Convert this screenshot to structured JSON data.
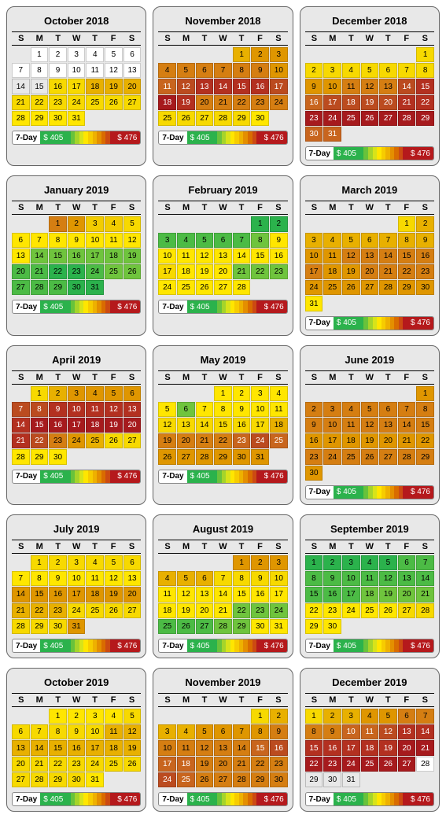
{
  "dowLabels": [
    "S",
    "M",
    "T",
    "W",
    "T",
    "F",
    "S"
  ],
  "legend": {
    "label": "7-Day",
    "low": "$ 405",
    "high": "$ 476",
    "lowColor": "#2bb24c",
    "highColor": "#b5191c",
    "scaleColors": [
      "#2bb24c",
      "#68c23b",
      "#a5d42a",
      "#d7e31a",
      "#ffe600",
      "#f7cc00",
      "#eeb100",
      "#e48f00",
      "#d96c00",
      "#cc4a12",
      "#b5191c"
    ]
  },
  "colors": {
    "W": "#ffffff",
    "G": "#e8e8e8",
    "g1": "#2bb24c",
    "g2": "#4cbb45",
    "g3": "#6fc43d",
    "y1": "#ffe600",
    "y2": "#f7d900",
    "y3": "#f2cc00",
    "o1": "#e8b000",
    "o2": "#df9600",
    "o3": "#d57e12",
    "o4": "#c8651e",
    "r1": "#bb4b1f",
    "r2": "#b33020",
    "r3": "#a61a1d"
  },
  "lightText": [
    "o4",
    "r1",
    "r2",
    "r3"
  ],
  "months": [
    {
      "title": "October 2018",
      "startDay": 1,
      "days": [
        "W",
        "W",
        "W",
        "W",
        "W",
        "W",
        "W",
        "W",
        "W",
        "W",
        "W",
        "W",
        "W",
        "G",
        "G",
        "y2",
        "y2",
        "o1",
        "o1",
        "o1",
        "y2",
        "y2",
        "y2",
        "y2",
        "y2",
        "y2",
        "y2",
        "y1",
        "y1",
        "y1",
        "y1"
      ]
    },
    {
      "title": "November 2018",
      "startDay": 4,
      "days": [
        "o1",
        "o2",
        "o2",
        "o3",
        "o3",
        "o3",
        "o3",
        "o3",
        "o3",
        "o2",
        "o4",
        "r1",
        "r2",
        "r2",
        "r2",
        "r2",
        "r1",
        "r3",
        "r2",
        "o3",
        "o3",
        "o3",
        "o3",
        "o3",
        "y2",
        "y2",
        "y2",
        "y2",
        "y2",
        "y1"
      ]
    },
    {
      "title": "December 2018",
      "startDay": 6,
      "days": [
        "y2",
        "y2",
        "y2",
        "y2",
        "y2",
        "y2",
        "y2",
        "y2",
        "o2",
        "o2",
        "o3",
        "o3",
        "o3",
        "r1",
        "r2",
        "o4",
        "r1",
        "r1",
        "r1",
        "r1",
        "r2",
        "r2",
        "r3",
        "r3",
        "r3",
        "r3",
        "r3",
        "r3",
        "r3",
        "o4",
        "o4"
      ]
    },
    {
      "title": "January 2019",
      "startDay": 2,
      "days": [
        "o3",
        "o2",
        "y3",
        "y3",
        "y2",
        "y1",
        "y1",
        "y1",
        "y1",
        "y1",
        "y1",
        "y1",
        "y1",
        "g3",
        "g3",
        "g3",
        "g3",
        "g3",
        "g3",
        "g2",
        "g2",
        "g1",
        "g1",
        "g2",
        "g3",
        "g3",
        "g2",
        "g2",
        "g2",
        "g1",
        "g1"
      ]
    },
    {
      "title": "February 2019",
      "startDay": 5,
      "days": [
        "g1",
        "g1",
        "g2",
        "g2",
        "g2",
        "g2",
        "g2",
        "g3",
        "y1",
        "y1",
        "y1",
        "y1",
        "y1",
        "y1",
        "y1",
        "y1",
        "y2",
        "y1",
        "y1",
        "y1",
        "g3",
        "g3",
        "g3",
        "y1",
        "y1",
        "y1",
        "y1",
        "y1"
      ]
    },
    {
      "title": "March 2019",
      "startDay": 5,
      "days": [
        "y2",
        "o1",
        "o1",
        "o1",
        "o1",
        "o1",
        "o1",
        "o1",
        "o1",
        "o2",
        "o2",
        "o3",
        "o3",
        "o3",
        "o3",
        "o3",
        "o3",
        "o2",
        "o2",
        "o3",
        "o3",
        "o3",
        "o3",
        "o2",
        "o2",
        "o2",
        "o2",
        "o2",
        "o2",
        "o2",
        "y1"
      ]
    },
    {
      "title": "April 2019",
      "startDay": 1,
      "days": [
        "y2",
        "o1",
        "o2",
        "o2",
        "o2",
        "o2",
        "r1",
        "r1",
        "r2",
        "r2",
        "r2",
        "r2",
        "r2",
        "r2",
        "r3",
        "r3",
        "r3",
        "r3",
        "r3",
        "r3",
        "r2",
        "r1",
        "o3",
        "o2",
        "o1",
        "y2",
        "y2",
        "y1",
        "y1",
        "y1"
      ]
    },
    {
      "title": "May 2019",
      "startDay": 3,
      "days": [
        "y1",
        "y1",
        "y1",
        "y1",
        "y1",
        "g3",
        "y1",
        "y1",
        "y1",
        "y1",
        "y1",
        "y2",
        "y2",
        "y2",
        "y2",
        "y2",
        "y2",
        "o1",
        "o3",
        "o3",
        "o3",
        "o3",
        "o4",
        "r1",
        "o4",
        "o2",
        "o2",
        "o2",
        "o2",
        "o2",
        "o2"
      ]
    },
    {
      "title": "June 2019",
      "startDay": 6,
      "days": [
        "o2",
        "o3",
        "o3",
        "o3",
        "o3",
        "o3",
        "o3",
        "o3",
        "o3",
        "o3",
        "o3",
        "o3",
        "o3",
        "o3",
        "o3",
        "o2",
        "o2",
        "o2",
        "o2",
        "o2",
        "o2",
        "o2",
        "o3",
        "o3",
        "o3",
        "o3",
        "o3",
        "o3",
        "o3",
        "o2"
      ]
    },
    {
      "title": "July 2019",
      "startDay": 1,
      "days": [
        "y2",
        "y2",
        "y2",
        "y2",
        "y2",
        "y2",
        "y1",
        "y1",
        "y1",
        "y1",
        "y1",
        "y1",
        "y1",
        "o2",
        "o2",
        "o2",
        "o2",
        "o2",
        "o2",
        "o2",
        "o1",
        "o1",
        "o1",
        "y2",
        "y2",
        "y2",
        "y2",
        "y2",
        "y2",
        "y2",
        "o2"
      ]
    },
    {
      "title": "August 2019",
      "startDay": 4,
      "days": [
        "o2",
        "o2",
        "o2",
        "o1",
        "o1",
        "o1",
        "y2",
        "y2",
        "y2",
        "y2",
        "y1",
        "y1",
        "y1",
        "y1",
        "y1",
        "y1",
        "y1",
        "y1",
        "y1",
        "y1",
        "y1",
        "g3",
        "g3",
        "g3",
        "g2",
        "g2",
        "g2",
        "g3",
        "g3",
        "y1",
        "y1"
      ]
    },
    {
      "title": "September 2019",
      "startDay": 0,
      "days": [
        "g1",
        "g1",
        "g1",
        "g1",
        "g1",
        "g2",
        "g2",
        "g2",
        "g2",
        "g2",
        "g2",
        "g2",
        "g2",
        "g2",
        "g2",
        "g2",
        "g2",
        "g3",
        "g3",
        "g3",
        "g3",
        "y1",
        "y1",
        "y1",
        "y1",
        "y1",
        "y2",
        "y2",
        "y1",
        "y1"
      ]
    },
    {
      "title": "October 2019",
      "startDay": 2,
      "days": [
        "y1",
        "y1",
        "y1",
        "y1",
        "y2",
        "y2",
        "y2",
        "y2",
        "y2",
        "y2",
        "o1",
        "o1",
        "o1",
        "o1",
        "o1",
        "o1",
        "o1",
        "o1",
        "o1",
        "y2",
        "y2",
        "y2",
        "y2",
        "y2",
        "y2",
        "y2",
        "y2",
        "y2",
        "y2",
        "y2",
        "y1"
      ]
    },
    {
      "title": "November 2019",
      "startDay": 5,
      "days": [
        "y2",
        "o1",
        "o1",
        "o1",
        "o2",
        "o2",
        "o2",
        "o2",
        "o3",
        "o3",
        "o3",
        "o3",
        "o3",
        "o3",
        "o4",
        "r1",
        "o4",
        "o4",
        "o3",
        "o3",
        "o3",
        "o3",
        "o3",
        "r1",
        "o4",
        "o3",
        "o3",
        "o3",
        "o3",
        "o3"
      ]
    },
    {
      "title": "December 2019",
      "startDay": 0,
      "days": [
        "y2",
        "o1",
        "o1",
        "o2",
        "o2",
        "o3",
        "o3",
        "o3",
        "o3",
        "o4",
        "o4",
        "r1",
        "r2",
        "r2",
        "r2",
        "r2",
        "r2",
        "r2",
        "r2",
        "r3",
        "r3",
        "r3",
        "r3",
        "r3",
        "r3",
        "r3",
        "r3",
        "W",
        "G",
        "G",
        "G"
      ]
    }
  ]
}
